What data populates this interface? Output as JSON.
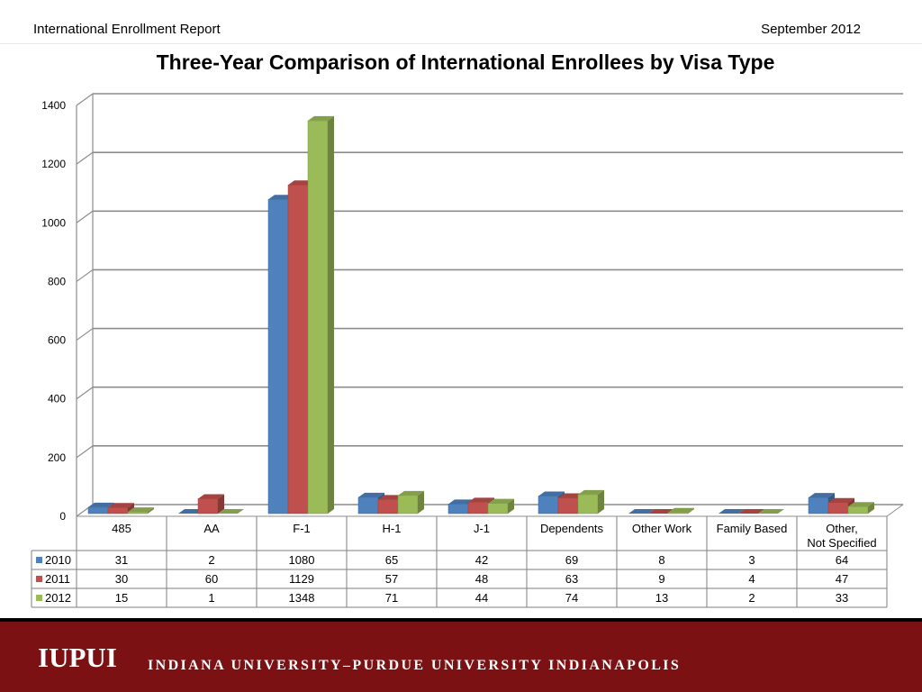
{
  "header": {
    "left_text": "International Enrollment Report",
    "right_text": "September 2012"
  },
  "footer": {
    "logo_text": "IUPUI",
    "university_name": "INDIANA UNIVERSITY–PURDUE UNIVERSITY INDIANAPOLIS",
    "background_color": "#7b1113"
  },
  "chart_data": {
    "type": "bar",
    "title": "Three-Year Comparison of International Enrollees by Visa Type",
    "categories": [
      "485",
      "AA",
      "F-1",
      "H-1",
      "J-1",
      "Dependents",
      "Other Work",
      "Family Based",
      "Other, Not Specified"
    ],
    "series": [
      {
        "name": "2010",
        "color": "#4f81bd",
        "values": [
          31,
          2,
          1080,
          65,
          42,
          69,
          8,
          3,
          64
        ]
      },
      {
        "name": "2011",
        "color": "#c0504d",
        "values": [
          30,
          60,
          1129,
          57,
          48,
          63,
          9,
          4,
          47
        ]
      },
      {
        "name": "2012",
        "color": "#9bbb59",
        "values": [
          15,
          1,
          1348,
          71,
          44,
          74,
          13,
          2,
          33
        ]
      }
    ],
    "ylim": [
      0,
      1400
    ],
    "yticks": [
      "0",
      "200",
      "400",
      "600",
      "800",
      "1000",
      "1200",
      "1400"
    ],
    "grid": true,
    "legend": "data-table"
  }
}
